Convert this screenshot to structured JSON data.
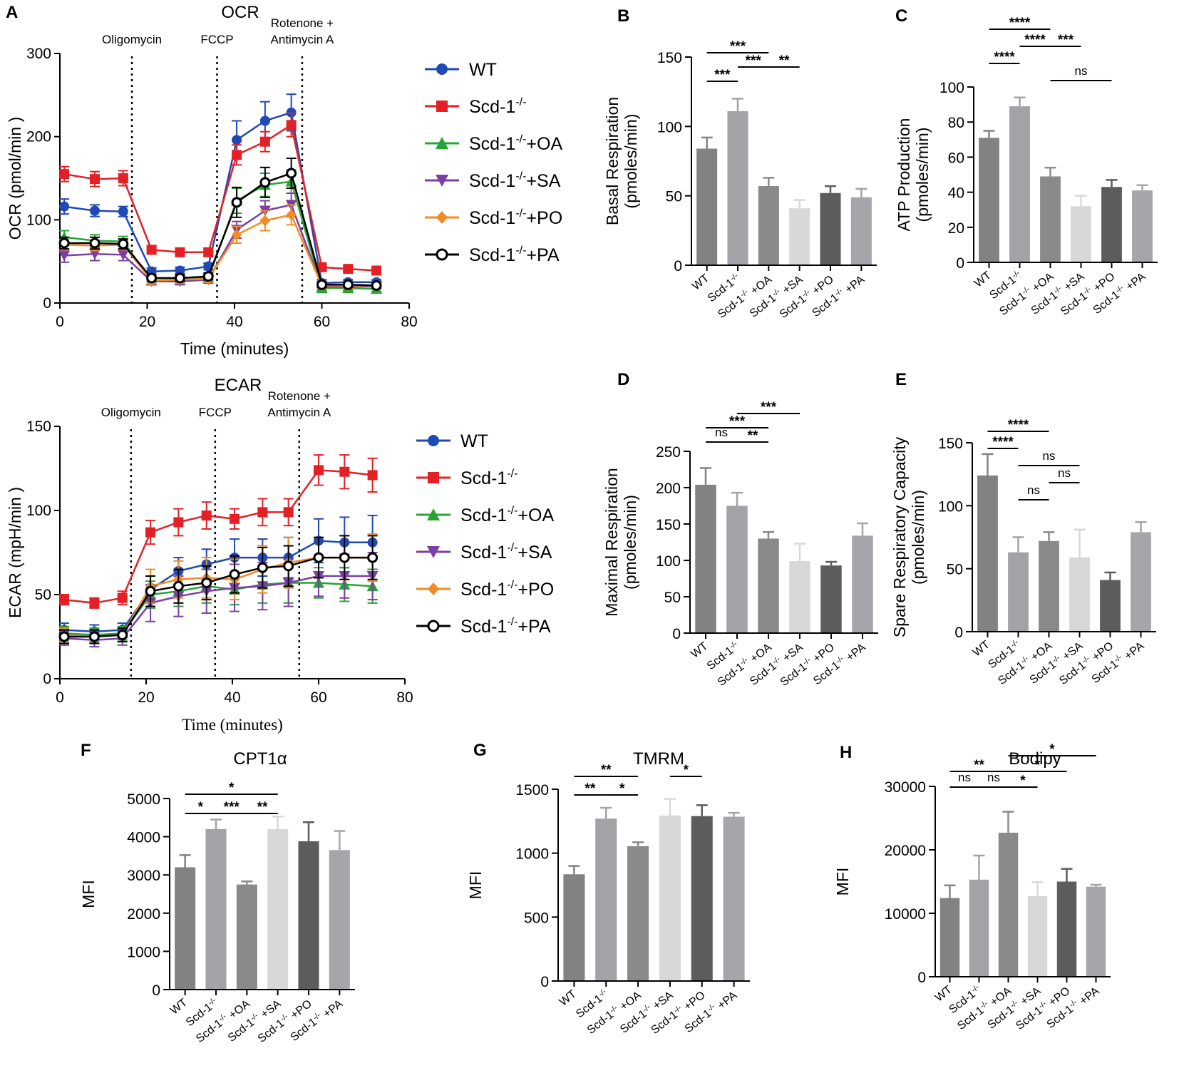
{
  "chart_data": [
    {
      "panel": "A",
      "type": "line",
      "title": "OCR",
      "xlabel": "Time (minutes)",
      "ylabel": "OCR (pmol/min )",
      "xlim": [
        0,
        80
      ],
      "ylim": [
        0,
        300
      ],
      "xticks": [
        0,
        20,
        40,
        60,
        80
      ],
      "yticks": [
        0,
        100,
        200,
        300
      ],
      "x": [
        1,
        8,
        14.5,
        21,
        27.5,
        34,
        40.5,
        47,
        53,
        60,
        66,
        72.5
      ],
      "markers": [
        {
          "x": 16.5,
          "label": "Oligomycin"
        },
        {
          "x": 36,
          "label": "FCCP"
        },
        {
          "x": 55.5,
          "label": "Rotenone +\nAntimycin A"
        }
      ],
      "series": [
        {
          "name": "WT",
          "color": "#1f4ab5",
          "marker": "circle",
          "values": [
            116,
            111,
            110,
            38,
            39,
            44,
            196,
            219,
            229,
            24,
            25,
            25
          ],
          "errors": [
            9,
            7,
            6,
            4,
            4,
            4,
            23,
            23,
            22,
            4,
            3,
            3
          ]
        },
        {
          "name": "Scd-1",
          "color": "#e32025",
          "marker": "square",
          "values": [
            155,
            149,
            150,
            64,
            61,
            61,
            178,
            194,
            214,
            43,
            41,
            39
          ],
          "errors": [
            9,
            9,
            9,
            5,
            4,
            4,
            12,
            12,
            14,
            3,
            3,
            3
          ]
        },
        {
          "name": "Scd-1+OA",
          "color": "#26a535",
          "marker": "triangle-up",
          "values": [
            79,
            75,
            74,
            27,
            28,
            30,
            123,
            142,
            146,
            18,
            18,
            17
          ],
          "errors": [
            8,
            7,
            6,
            4,
            4,
            4,
            15,
            14,
            14,
            3,
            3,
            3
          ]
        },
        {
          "name": "Scd-1+SA",
          "color": "#7b3ea6",
          "marker": "triangle-down",
          "values": [
            57,
            59,
            58,
            26,
            26,
            28,
            88,
            111,
            118,
            20,
            20,
            20
          ],
          "errors": [
            8,
            8,
            7,
            4,
            4,
            4,
            10,
            12,
            14,
            3,
            3,
            3
          ]
        },
        {
          "name": "Scd-1+PO",
          "color": "#f28b22",
          "marker": "diamond",
          "values": [
            70,
            69,
            70,
            27,
            28,
            29,
            82,
            99,
            106,
            21,
            21,
            21
          ],
          "errors": [
            6,
            6,
            6,
            4,
            4,
            4,
            10,
            12,
            12,
            3,
            3,
            3
          ]
        },
        {
          "name": "Scd-1+PA",
          "color": "#000000",
          "marker": "open-circle",
          "values": [
            72,
            72,
            71,
            30,
            30,
            32,
            121,
            145,
            156,
            22,
            22,
            21
          ],
          "errors": [
            7,
            7,
            6,
            4,
            4,
            4,
            18,
            18,
            18,
            3,
            3,
            3
          ]
        }
      ]
    },
    {
      "panel": "",
      "type": "line",
      "title": "ECAR",
      "xlabel": "Time (minutes)",
      "ylabel": "ECAR (mpH/min )",
      "xlim": [
        0,
        80
      ],
      "ylim": [
        0,
        150
      ],
      "xticks": [
        0,
        20,
        40,
        60,
        80
      ],
      "yticks": [
        0,
        50,
        100,
        150
      ],
      "x": [
        1,
        8,
        14.5,
        21,
        27.5,
        34,
        40.5,
        47,
        53,
        60,
        66,
        72.5
      ],
      "markers": [
        {
          "x": 16.5,
          "label": "Oligomycin"
        },
        {
          "x": 36,
          "label": "FCCP"
        },
        {
          "x": 55.5,
          "label": "Rotenone +\nAntimycin A"
        }
      ],
      "series": [
        {
          "name": "WT",
          "color": "#1f4ab5",
          "marker": "circle",
          "values": [
            29,
            28,
            29,
            53,
            64,
            68,
            72,
            72,
            72,
            82,
            81,
            81
          ],
          "errors": [
            4,
            4,
            4,
            8,
            8,
            9,
            11,
            11,
            12,
            13,
            15,
            16
          ]
        },
        {
          "name": "Scd-1",
          "color": "#e32025",
          "marker": "square",
          "values": [
            47,
            45,
            48,
            87,
            93,
            97,
            95,
            99,
            99,
            124,
            123,
            121
          ],
          "errors": [
            3,
            3,
            4,
            7,
            8,
            8,
            6,
            8,
            8,
            9,
            10,
            10
          ]
        },
        {
          "name": "Scd-1+OA",
          "color": "#26a535",
          "marker": "triangle-up",
          "values": [
            27,
            26,
            27,
            50,
            52,
            55,
            53,
            56,
            57,
            57,
            56,
            55
          ],
          "errors": [
            4,
            4,
            4,
            8,
            9,
            10,
            9,
            11,
            12,
            9,
            10,
            10
          ]
        },
        {
          "name": "Scd-1+SA",
          "color": "#7b3ea6",
          "marker": "triangle-down",
          "values": [
            24,
            23,
            24,
            45,
            49,
            52,
            54,
            55,
            57,
            61,
            61,
            61
          ],
          "errors": [
            4,
            4,
            4,
            11,
            12,
            13,
            14,
            14,
            14,
            12,
            13,
            14
          ]
        },
        {
          "name": "Scd-1+PO",
          "color": "#f28b22",
          "marker": "diamond",
          "values": [
            26,
            25,
            26,
            55,
            59,
            60,
            59,
            65,
            69,
            72,
            72,
            72
          ],
          "errors": [
            4,
            4,
            4,
            10,
            11,
            12,
            12,
            14,
            15,
            12,
            13,
            14
          ]
        },
        {
          "name": "Scd-1+PA",
          "color": "#000000",
          "marker": "open-circle",
          "values": [
            25,
            25,
            26,
            52,
            55,
            57,
            62,
            66,
            67,
            72,
            72,
            72
          ],
          "errors": [
            4,
            4,
            4,
            9,
            10,
            10,
            11,
            12,
            12,
            12,
            13,
            13
          ]
        }
      ]
    },
    {
      "panel": "B",
      "type": "bar",
      "ylabel": [
        "Basal Respiration",
        "(pmoles/min)"
      ],
      "ylim": [
        0,
        150
      ],
      "yticks": [
        0,
        50,
        100,
        150
      ],
      "categories": [
        "WT",
        "Scd-1 -/-",
        "Scd-1 -/- +OA",
        "Scd-1 -/- +SA",
        "Scd-1 -/- +PO",
        "Scd-1 -/- +PA"
      ],
      "values": [
        84,
        111,
        57,
        41,
        52,
        49
      ],
      "errors": [
        8,
        9,
        6,
        6,
        5,
        6
      ],
      "sig": [
        {
          "from": 0,
          "to": 2,
          "label": "***",
          "level": 2
        },
        {
          "from": 0,
          "to": 1,
          "label": "***",
          "level": 0
        },
        {
          "from": 1,
          "to": 2,
          "label": "***",
          "level": 1
        },
        {
          "from": 2,
          "to": 3,
          "label": "**",
          "level": 1
        }
      ]
    },
    {
      "panel": "C",
      "type": "bar",
      "ylabel": [
        "ATP Production",
        "(pmoles/min)"
      ],
      "ylim": [
        0,
        100
      ],
      "yticks": [
        0,
        20,
        40,
        60,
        80,
        100
      ],
      "categories": [
        "WT",
        "Scd-1 -/-",
        "Scd-1 -/- +OA",
        "Scd-1 -/- +SA",
        "Scd-1 -/- +PO",
        "Scd-1 -/- +PA"
      ],
      "values": [
        71,
        89,
        49,
        32,
        43,
        41
      ],
      "errors": [
        4,
        5,
        5,
        6,
        4,
        3
      ],
      "sig": [
        {
          "from": 0,
          "to": 2,
          "label": "****",
          "level": 3
        },
        {
          "from": 1,
          "to": 2,
          "label": "****",
          "level": 2
        },
        {
          "from": 2,
          "to": 3,
          "label": "***",
          "level": 2
        },
        {
          "from": 0,
          "to": 1,
          "label": "****",
          "level": 1
        },
        {
          "from": 2,
          "to": 4,
          "label": "ns",
          "level": 0
        }
      ]
    },
    {
      "panel": "D",
      "type": "bar",
      "ylabel": [
        "Maximal Respiration",
        "(pmoles/min)"
      ],
      "ylim": [
        0,
        250
      ],
      "yticks": [
        0,
        50,
        100,
        150,
        200,
        250
      ],
      "categories": [
        "WT",
        "Scd-1 -/-",
        "Scd-1 -/- +OA",
        "Scd-1 -/- +SA",
        "Scd-1 -/- +PO",
        "Scd-1 -/- +PA"
      ],
      "values": [
        204,
        175,
        130,
        99,
        93,
        134
      ],
      "errors": [
        23,
        18,
        9,
        24,
        5,
        17
      ],
      "sig": [
        {
          "from": 1,
          "to": 3,
          "label": "***",
          "level": 3
        },
        {
          "from": 0,
          "to": 2,
          "label": "***",
          "level": 2
        },
        {
          "from": 0,
          "to": 1,
          "label": "ns",
          "level": 1
        },
        {
          "from": 1,
          "to": 2,
          "label": "**",
          "level": 1
        }
      ]
    },
    {
      "panel": "E",
      "type": "bar",
      "ylabel": [
        "Spare Respiratory Capacity",
        "(pmoles/min)"
      ],
      "ylim": [
        0,
        150
      ],
      "yticks": [
        0,
        50,
        100,
        150
      ],
      "categories": [
        "WT",
        "Scd-1 -/-",
        "Scd-1 -/- +OA",
        "Scd-1 -/- +SA",
        "Scd-1 -/- +PO",
        "Scd-1 -/- +PA"
      ],
      "values": [
        124,
        63,
        72,
        59,
        41,
        79
      ],
      "errors": [
        17,
        12,
        7,
        22,
        6,
        8
      ],
      "sig": [
        {
          "from": 0,
          "to": 2,
          "label": "****",
          "level": 3
        },
        {
          "from": 0,
          "to": 1,
          "label": "****",
          "level": 2
        },
        {
          "from": 1,
          "to": 3,
          "label": "ns",
          "level": 1
        },
        {
          "from": 2,
          "to": 3,
          "label": "ns",
          "level": 0
        },
        {
          "from": 1,
          "to": 2,
          "label": "ns",
          "level": -1
        }
      ]
    },
    {
      "panel": "F",
      "type": "bar",
      "title": "CPT1α",
      "ylabel": [
        "MFI"
      ],
      "ylim": [
        0,
        5000
      ],
      "yticks": [
        0,
        1000,
        2000,
        3000,
        4000,
        5000
      ],
      "categories": [
        "WT",
        "Scd-1 -/-",
        "Scd-1 -/- +OA",
        "Scd-1 -/- +SA",
        "Scd-1 -/- +PO",
        "Scd-1 -/- +PA"
      ],
      "values": [
        3200,
        4200,
        2750,
        4200,
        3880,
        3650
      ],
      "errors": [
        320,
        250,
        80,
        330,
        500,
        500
      ],
      "sig": [
        {
          "from": 0,
          "to": 3,
          "label": "*",
          "level": 1
        },
        {
          "from": 0,
          "to": 1,
          "label": "*",
          "level": 0
        },
        {
          "from": 1,
          "to": 2,
          "label": "***",
          "level": 0
        },
        {
          "from": 2,
          "to": 3,
          "label": "**",
          "level": 0
        }
      ]
    },
    {
      "panel": "G",
      "type": "bar",
      "title": "TMRM",
      "ylabel": [
        "MFI"
      ],
      "ylim": [
        0,
        1500
      ],
      "yticks": [
        0,
        500,
        1000,
        1500
      ],
      "categories": [
        "WT",
        "Scd-1 -/-",
        "Scd-1 -/- +OA",
        "Scd-1 -/- +SA",
        "Scd-1 -/- +PO",
        "Scd-1 -/- +PA"
      ],
      "values": [
        835,
        1270,
        1055,
        1295,
        1290,
        1285
      ],
      "errors": [
        65,
        85,
        30,
        130,
        85,
        30
      ],
      "sig": [
        {
          "from": 0,
          "to": 2,
          "label": "**",
          "level": 1
        },
        {
          "from": 3,
          "to": 4,
          "label": "*",
          "level": 1
        },
        {
          "from": 0,
          "to": 1,
          "label": "**",
          "level": 0
        },
        {
          "from": 1,
          "to": 2,
          "label": "*",
          "level": 0
        }
      ]
    },
    {
      "panel": "H",
      "type": "bar",
      "title": "Bodipy",
      "ylabel": [
        "MFI"
      ],
      "ylim": [
        0,
        30000
      ],
      "yticks": [
        0,
        10000,
        20000,
        30000
      ],
      "categories": [
        "WT",
        "Scd-1-/-",
        "Scd-1-/- +OA",
        "Scd-1-/- +SA",
        "Scd-1-/- +PO",
        "Scd-1-/- +PA"
      ],
      "values": [
        12400,
        15300,
        22700,
        12700,
        15000,
        14200
      ],
      "errors": [
        2000,
        3800,
        3300,
        2200,
        2000,
        300
      ],
      "sig": [
        {
          "from": 0,
          "to": 2,
          "label": "**",
          "level": 2
        },
        {
          "from": 2,
          "to": 5,
          "label": "*",
          "level": 3
        },
        {
          "from": 2,
          "to": 4,
          "label": "*",
          "level": 2
        },
        {
          "from": 0,
          "to": 1,
          "label": "ns",
          "level": 1
        },
        {
          "from": 1,
          "to": 2,
          "label": "ns",
          "level": 1
        },
        {
          "from": 2,
          "to": 3,
          "label": "*",
          "level": 1
        }
      ]
    }
  ],
  "bar_colors": [
    "#828282",
    "#a2a2a7",
    "#8a8a8a",
    "#d8d8d8",
    "#5c5c5c",
    "#a5a5aa"
  ]
}
